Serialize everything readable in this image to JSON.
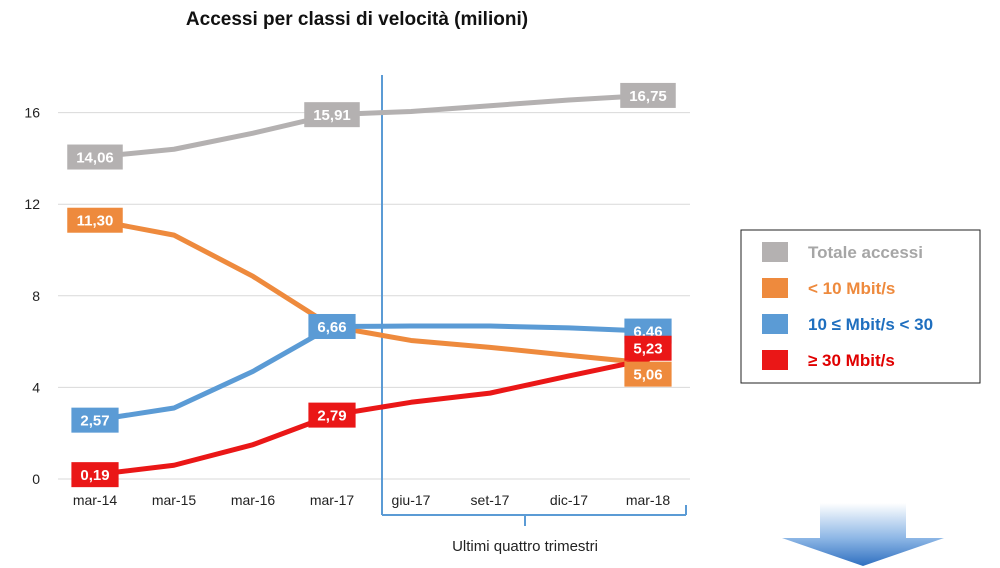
{
  "chart_data": {
    "type": "line",
    "title": "Accessi per classi di velocità (milioni)",
    "categories": [
      "mar-14",
      "mar-15",
      "mar-16",
      "mar-17",
      "giu-17",
      "set-17",
      "dic-17",
      "mar-18"
    ],
    "ylim": [
      0,
      17
    ],
    "yticks": [
      0,
      4,
      8,
      12,
      16
    ],
    "grid": true,
    "legend_position": "right",
    "annotation": "Ultimi quattro trimestri",
    "series": [
      {
        "name": "Totale accessi",
        "color": "#b4b1b1",
        "text_color": "#a6a6a6",
        "values": [
          14.06,
          14.4,
          15.1,
          15.91,
          16.05,
          16.3,
          16.55,
          16.75
        ],
        "labels": [
          {
            "index": 0,
            "text": "14,06"
          },
          {
            "index": 3,
            "text": "15,91"
          },
          {
            "index": 7,
            "text": "16,75"
          }
        ]
      },
      {
        "name": "< 10 Mbit/s",
        "color": "#ee8a3d",
        "text_color": "#ee8a3d",
        "values": [
          11.3,
          10.65,
          8.85,
          6.66,
          6.05,
          5.75,
          5.4,
          5.06
        ],
        "labels": [
          {
            "index": 0,
            "text": "11,30"
          },
          {
            "index": 7,
            "text": "5,06"
          }
        ]
      },
      {
        "name": "10 ≤ Mbit/s  < 30",
        "color": "#5b9bd5",
        "text_color": "#1f6fbf",
        "values": [
          2.57,
          3.1,
          4.7,
          6.66,
          6.68,
          6.68,
          6.6,
          6.46
        ],
        "labels": [
          {
            "index": 0,
            "text": "2,57"
          },
          {
            "index": 3,
            "text": "6,66"
          },
          {
            "index": 7,
            "text": "6,46"
          }
        ]
      },
      {
        "name": "≥ 30 Mbit/s",
        "color": "#ea1717",
        "text_color": "#e00000",
        "values": [
          0.19,
          0.6,
          1.5,
          2.79,
          3.35,
          3.75,
          4.5,
          5.23
        ],
        "labels": [
          {
            "index": 0,
            "text": "0,19"
          },
          {
            "index": 3,
            "text": "2,79"
          },
          {
            "index": 7,
            "text": "5,23"
          }
        ]
      }
    ]
  }
}
